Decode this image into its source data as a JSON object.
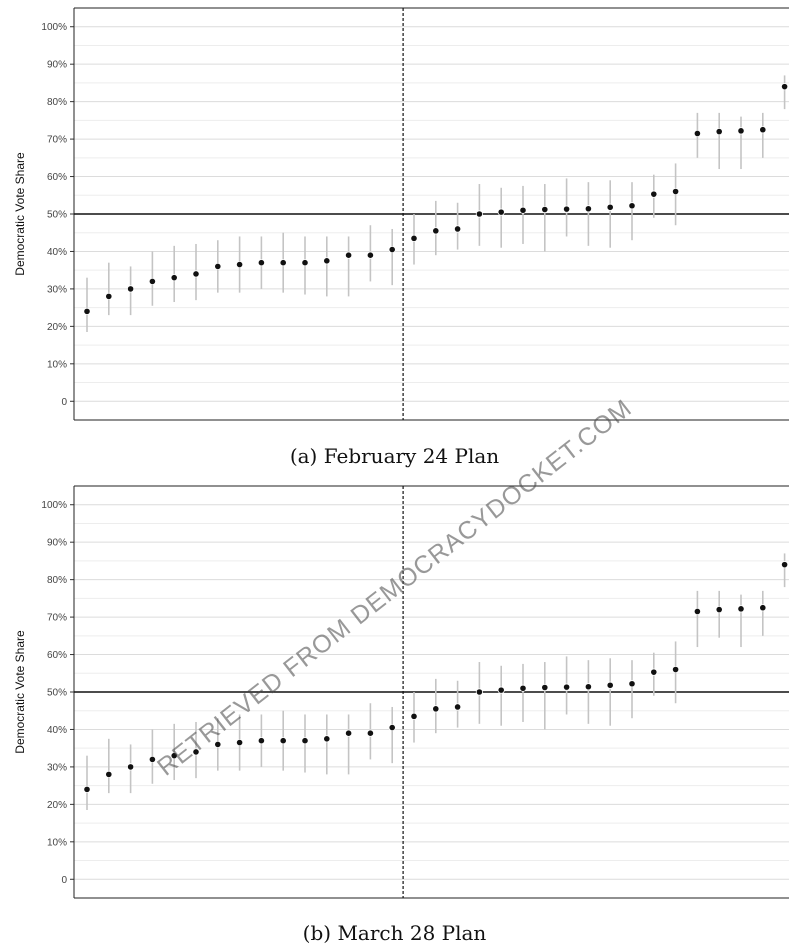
{
  "watermark": "RETRIEVED FROM DEMOCRACYDOCKET.COM",
  "chart_data": [
    {
      "type": "scatter",
      "caption": "(a) February 24 Plan",
      "ylabel": "Democratic Vote Share",
      "ylim": [
        -5,
        105
      ],
      "yticks": [
        0,
        10,
        20,
        30,
        40,
        50,
        60,
        70,
        80,
        90,
        100
      ],
      "ytick_labels": [
        "0",
        "10%",
        "20%",
        "30%",
        "40%",
        "50%",
        "60%",
        "70%",
        "80%",
        "90%",
        "100%"
      ],
      "hline": 50,
      "vline_after_index": 15,
      "grid": true,
      "legend": "none",
      "x": [
        1,
        2,
        3,
        4,
        5,
        6,
        7,
        8,
        9,
        10,
        11,
        12,
        13,
        14,
        15,
        16,
        17,
        18,
        19,
        20,
        21,
        22,
        23,
        24,
        25,
        26,
        27,
        28,
        29,
        30,
        31,
        32
      ],
      "y": [
        24,
        28,
        30,
        32,
        33,
        34,
        36,
        36.5,
        37,
        37,
        37,
        37.5,
        39,
        39,
        40.5,
        43.5,
        45.5,
        46,
        50,
        50.5,
        51,
        51.2,
        51.3,
        51.4,
        51.8,
        52.2,
        55.3,
        56,
        71.5,
        72,
        72.2,
        72.5
      ],
      "lower": [
        18.5,
        23,
        23,
        25.5,
        26.5,
        27,
        29,
        29,
        30,
        29,
        28.5,
        28,
        28,
        32,
        31,
        36.5,
        39,
        40.5,
        41.5,
        41,
        42,
        40,
        44,
        41.5,
        41,
        43,
        49,
        47,
        65,
        62,
        62,
        65
      ],
      "upper": [
        33,
        37,
        36,
        40,
        41.5,
        42,
        43,
        44,
        44,
        45,
        44,
        44,
        44,
        47,
        46,
        50,
        53.5,
        53,
        58,
        57,
        57.5,
        58,
        59.5,
        58.5,
        59,
        58.5,
        60.5,
        63.5,
        77,
        77,
        76,
        77
      ],
      "x_last": 33,
      "y_last": 84,
      "lower_last": 78,
      "upper_last": 87
    },
    {
      "type": "scatter",
      "caption": "(b) March 28 Plan",
      "ylabel": "Democratic Vote Share",
      "ylim": [
        -5,
        105
      ],
      "yticks": [
        0,
        10,
        20,
        30,
        40,
        50,
        60,
        70,
        80,
        90,
        100
      ],
      "ytick_labels": [
        "0",
        "10%",
        "20%",
        "30%",
        "40%",
        "50%",
        "60%",
        "70%",
        "80%",
        "90%",
        "100%"
      ],
      "hline": 50,
      "vline_after_index": 15,
      "grid": true,
      "legend": "none",
      "x": [
        1,
        2,
        3,
        4,
        5,
        6,
        7,
        8,
        9,
        10,
        11,
        12,
        13,
        14,
        15,
        16,
        17,
        18,
        19,
        20,
        21,
        22,
        23,
        24,
        25,
        26,
        27,
        28,
        29,
        30,
        31,
        32
      ],
      "y": [
        24,
        28,
        30,
        32,
        33,
        34,
        36,
        36.5,
        37,
        37,
        37,
        37.5,
        39,
        39,
        40.5,
        43.5,
        45.5,
        46,
        50,
        50.5,
        51,
        51.2,
        51.3,
        51.4,
        51.8,
        52.2,
        55.3,
        56,
        71.5,
        72,
        72.2,
        72.5
      ],
      "lower": [
        18.5,
        23,
        23,
        25.5,
        26.5,
        27,
        29,
        29,
        30,
        29,
        28.5,
        28,
        28,
        32,
        31,
        36.5,
        39,
        40.5,
        41.5,
        41,
        42,
        40,
        44,
        41.5,
        41,
        43,
        49,
        47,
        62,
        64.5,
        62,
        65
      ],
      "upper": [
        33,
        37.5,
        36,
        40,
        41.5,
        42,
        43,
        44,
        44,
        45,
        44,
        44,
        44,
        47,
        46,
        50,
        53.5,
        53,
        58,
        57,
        57.5,
        58,
        59.5,
        58.5,
        59,
        58.5,
        60.5,
        63.5,
        77,
        77,
        76,
        77
      ],
      "x_last": 33,
      "y_last": 84,
      "lower_last": 78,
      "upper_last": 87
    }
  ]
}
